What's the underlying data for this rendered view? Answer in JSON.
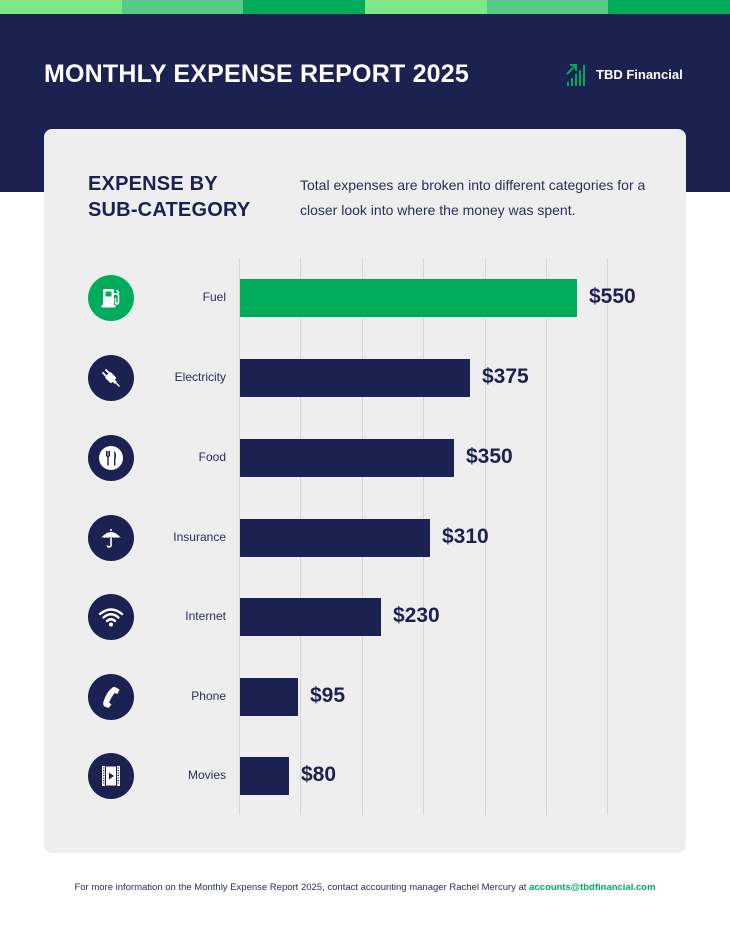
{
  "stripe": {
    "colors": [
      "#7ee787",
      "#58c987",
      "#00ab5b",
      "#7ee787",
      "#58c987",
      "#00ab5b"
    ]
  },
  "header": {
    "title": "MONTHLY EXPENSE REPORT 2025",
    "brand_name": "TBD Financial",
    "brand_icon": "bar-chart-growth-icon"
  },
  "section": {
    "title_line1": "EXPENSE BY",
    "title_line2": "SUB-CATEGORY",
    "description": "Total expenses are broken into different categories for a closer look into where the money was spent."
  },
  "colors": {
    "navy": "#1b2150",
    "green": "#00ab5b",
    "card_bg": "#eeeeee",
    "gridline": "#d6d6d6"
  },
  "chart_data": {
    "type": "bar",
    "orientation": "horizontal",
    "title": "EXPENSE BY SUB-CATEGORY",
    "subtitle": "Total expenses are broken into different categories for a closer look into where the money was spent.",
    "categories": [
      "Fuel",
      "Electricity",
      "Food",
      "Insurance",
      "Internet",
      "Phone",
      "Movies"
    ],
    "values": [
      550,
      375,
      350,
      310,
      230,
      95,
      80
    ],
    "value_labels": [
      "$550",
      "$375",
      "$350",
      "$310",
      "$230",
      "$95",
      "$80"
    ],
    "icons": [
      "fuel-pump-icon",
      "electric-plug-icon",
      "fork-knife-icon",
      "umbrella-icon",
      "wifi-icon",
      "phone-icon",
      "film-icon"
    ],
    "highlight_category": "Fuel",
    "xlabel": "",
    "ylabel": "",
    "xlim": [
      0,
      600
    ],
    "grid": true,
    "gridline_count": 7,
    "legend": "none",
    "unit": "USD"
  },
  "footer": {
    "text": "For more information on the Monthly Expense Report 2025, contact accounting manager Rachel Mercury at ",
    "email": "accounts@tbdfinancial.com"
  }
}
